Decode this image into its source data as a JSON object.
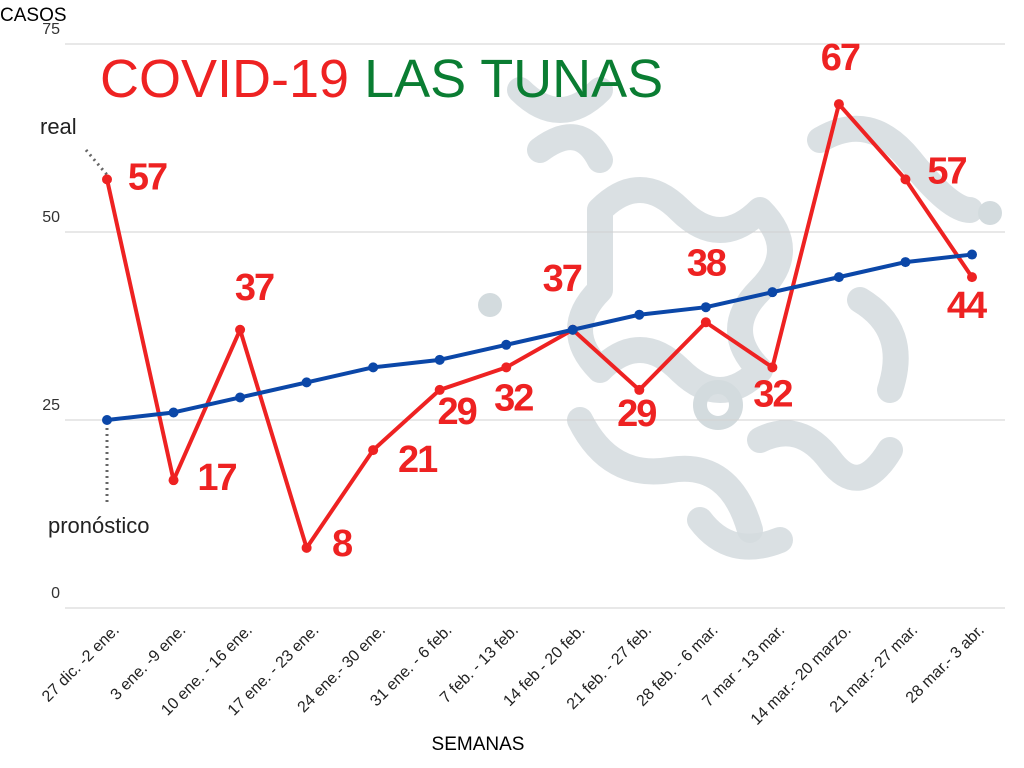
{
  "chart_data": {
    "type": "line",
    "title": [
      "COVID-19",
      "LAS TUNAS"
    ],
    "title_colors": [
      "#ee2222",
      "#0a7d32"
    ],
    "y_label": "CASOS",
    "x_label": "SEMANAS",
    "categories": [
      "27 dic. -2 ene.",
      "3 ene. -9 ene.",
      "10 ene. - 16 ene.",
      "17 ene. - 23 ene.",
      "24 ene.- 30 ene.",
      "31 ene. - 6 feb.",
      "7 feb. - 13 feb.",
      "14 feb - 20 feb.",
      "21 feb. - 27 feb.",
      "28 feb. - 6 mar.",
      "7 mar - 13 mar.",
      "14 mar.- 20 marzo.",
      "21 mar.- 27 mar.",
      "28 mar.- 3 abr."
    ],
    "series": [
      {
        "name": "real",
        "color": "#ee2222",
        "values": [
          57,
          17,
          37,
          8,
          21,
          29,
          32,
          37,
          29,
          38,
          32,
          67,
          57,
          44
        ],
        "data_labels": true
      },
      {
        "name": "pronóstico",
        "color": "#0b47a8",
        "values": [
          25,
          26,
          28,
          30,
          32,
          33,
          35,
          37,
          39,
          40,
          42,
          44,
          46,
          47
        ],
        "data_labels": false
      }
    ],
    "ylim": [
      0,
      75
    ],
    "yticks": [
      0,
      25,
      50,
      75
    ],
    "grid": true
  }
}
